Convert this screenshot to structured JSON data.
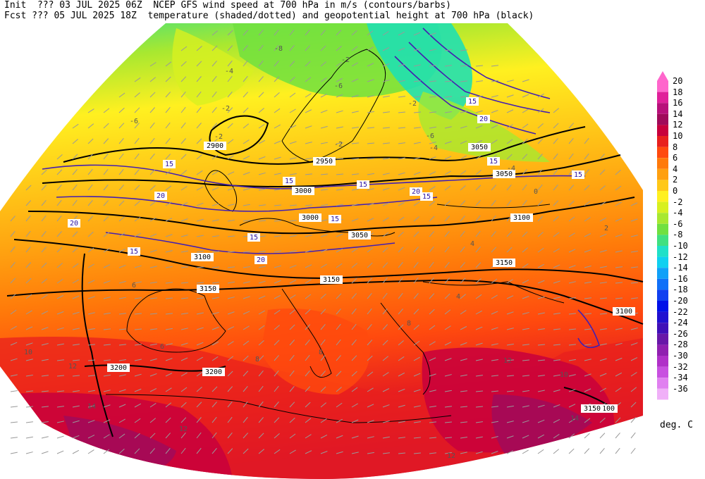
{
  "header": {
    "init_line": "Init  ??? 03 JUL 2025 06Z  NCEP GFS wind speed at 700 hPa in m/s (contours/barbs)",
    "fcst_line": "Fcst ??? 05 JUL 2025 18Z  temperature (shaded/dotted) and geopotential height at 700 hPa (black)"
  },
  "colorbar": {
    "units": "deg. C",
    "levels": [
      {
        "value": "20",
        "color": "#ff66cc"
      },
      {
        "value": "18",
        "color": "#e0209a"
      },
      {
        "value": "16",
        "color": "#b8107a"
      },
      {
        "value": "14",
        "color": "#a00a5a"
      },
      {
        "value": "12",
        "color": "#c8003c"
      },
      {
        "value": "10",
        "color": "#e8201e"
      },
      {
        "value": "8",
        "color": "#ff4a0e"
      },
      {
        "value": "6",
        "color": "#ff7a0a"
      },
      {
        "value": "4",
        "color": "#ffa010"
      },
      {
        "value": "2",
        "color": "#ffc818"
      },
      {
        "value": "0",
        "color": "#fff020"
      },
      {
        "value": "-2",
        "color": "#d8f020"
      },
      {
        "value": "-4",
        "color": "#a8e830"
      },
      {
        "value": "-6",
        "color": "#70e040"
      },
      {
        "value": "-8",
        "color": "#40e080"
      },
      {
        "value": "-10",
        "color": "#20e0c8"
      },
      {
        "value": "-12",
        "color": "#10d0f0"
      },
      {
        "value": "-14",
        "color": "#10a0f8"
      },
      {
        "value": "-16",
        "color": "#1070f8"
      },
      {
        "value": "-18",
        "color": "#1040f0"
      },
      {
        "value": "-20",
        "color": "#0010e8"
      },
      {
        "value": "-22",
        "color": "#2010d0"
      },
      {
        "value": "-24",
        "color": "#4010b8"
      },
      {
        "value": "-26",
        "color": "#6818a8"
      },
      {
        "value": "-28",
        "color": "#9020b0"
      },
      {
        "value": "-30",
        "color": "#b030c8"
      },
      {
        "value": "-32",
        "color": "#c850e0"
      },
      {
        "value": "-34",
        "color": "#e080f0"
      },
      {
        "value": "-36",
        "color": "#f0b0f8"
      }
    ]
  },
  "map": {
    "height_labels": [
      "2900",
      "2950",
      "3000",
      "3050",
      "3050",
      "3000",
      "3050",
      "3100",
      "3100",
      "3100",
      "3150",
      "3150",
      "3150",
      "3200",
      "3200",
      "3100",
      "3150"
    ],
    "wind_labels": [
      "15",
      "15",
      "15",
      "20",
      "20",
      "15",
      "15",
      "20",
      "15",
      "15",
      "15",
      "20",
      "15",
      "20",
      "15"
    ],
    "temp_labels": [
      "-8",
      "-4",
      "-6",
      "-2",
      "-6",
      "-2",
      "-4",
      "-4",
      "-6",
      "-2",
      "0",
      "-2",
      "-2",
      "2",
      "6",
      "4",
      "8",
      "8",
      "10",
      "12",
      "14",
      "12",
      "12",
      "10",
      "12",
      "14",
      "8",
      "6",
      "4"
    ]
  }
}
